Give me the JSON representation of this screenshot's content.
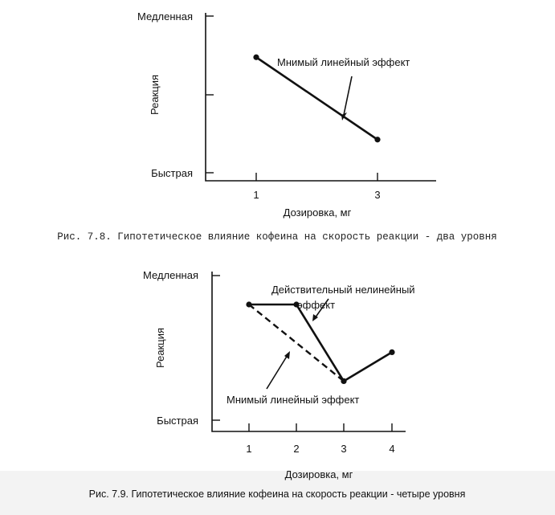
{
  "chart_data": [
    {
      "type": "line",
      "title": "",
      "xlabel": "Дозировка, мг",
      "ylabel": "Реакция",
      "y_levels": [
        "Медленная",
        "Быстрая"
      ],
      "x_ticks": [
        "1",
        "3"
      ],
      "series": [
        {
          "name": "Мнимый линейный эффект",
          "style": "solid",
          "x": [
            1,
            3
          ],
          "y": [
            0.75,
            0.25
          ]
        }
      ],
      "annotations": [
        "Мнимый линейный эффект"
      ],
      "caption": "Рис. 7.8. Гипотетическое влияние кофеина на скорость реакции - два уровня"
    },
    {
      "type": "line",
      "title": "",
      "xlabel": "Дозировка, мг",
      "ylabel": "Реакция",
      "y_levels": [
        "Медленная",
        "Быстрая"
      ],
      "x_ticks": [
        "1",
        "2",
        "3",
        "4"
      ],
      "series": [
        {
          "name": "Действительный нелинейный эффект",
          "style": "solid",
          "x": [
            1,
            2,
            3,
            4
          ],
          "y": [
            0.8,
            0.8,
            0.27,
            0.47
          ]
        },
        {
          "name": "Мнимый линейный эффект",
          "style": "dashed",
          "x": [
            1,
            3
          ],
          "y": [
            0.8,
            0.27
          ]
        }
      ],
      "annotations": [
        "Действительный нелинейный",
        "эффект",
        "Мнимый линейный эффект"
      ],
      "caption": "Рис. 7.9. Гипотетическое влияние кофеина на скорость реакции - четыре уровня"
    }
  ],
  "colors": {
    "ink": "#111111",
    "footer_band": "#f3f3f3"
  }
}
